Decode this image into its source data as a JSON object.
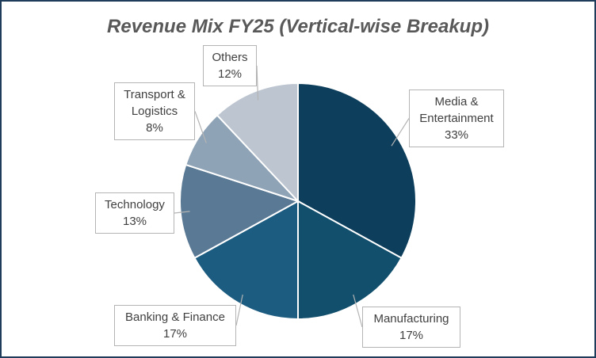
{
  "chart_data": {
    "type": "pie",
    "title": "Revenue Mix FY25 (Vertical-wise Breakup)",
    "categories": [
      "Media & Entertainment",
      "Manufacturing",
      "Banking & Finance",
      "Technology",
      "Transport & Logistics",
      "Others"
    ],
    "values": [
      33,
      17,
      17,
      13,
      8,
      12
    ],
    "value_labels": [
      "33%",
      "17%",
      "17%",
      "13%",
      "8%",
      "12%"
    ],
    "colors": [
      "#0d3f5c",
      "#114f6d",
      "#1b5c80",
      "#5a7994",
      "#8fa3b6",
      "#bcc5d0"
    ]
  }
}
